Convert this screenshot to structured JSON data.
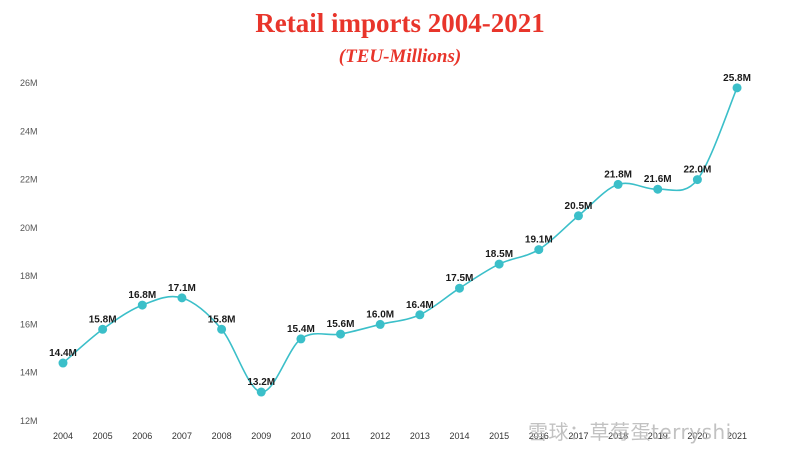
{
  "chart_data": {
    "type": "line",
    "title": "Retail imports 2004-2021",
    "subtitle": "(TEU-Millions)",
    "x": [
      "2004",
      "2005",
      "2006",
      "2007",
      "2008",
      "2009",
      "2010",
      "2011",
      "2012",
      "2013",
      "2014",
      "2015",
      "2016",
      "2017",
      "2018",
      "2019",
      "2020",
      "2021"
    ],
    "series": [
      {
        "values": [
          14.4,
          15.8,
          16.8,
          17.1,
          15.8,
          13.2,
          15.4,
          15.6,
          16.0,
          16.4,
          17.5,
          18.5,
          19.1,
          20.5,
          21.8,
          21.6,
          22.0,
          25.8
        ],
        "labels": [
          "14.4M",
          "15.8M",
          "16.8M",
          "17.1M",
          "15.8M",
          "13.2M",
          "15.4M",
          "15.6M",
          "16.0M",
          "16.4M",
          "17.5M",
          "18.5M",
          "19.1M",
          "20.5M",
          "21.8M",
          "21.6M",
          "22.0M",
          "25.8M"
        ]
      }
    ],
    "yticks": [
      "12M",
      "14M",
      "16M",
      "18M",
      "20M",
      "22M",
      "24M",
      "26M"
    ],
    "ylim": [
      12,
      26
    ],
    "line_color": "#3bbfc9",
    "grid": false
  },
  "watermark": "雪球：草莓蛋terryshi"
}
